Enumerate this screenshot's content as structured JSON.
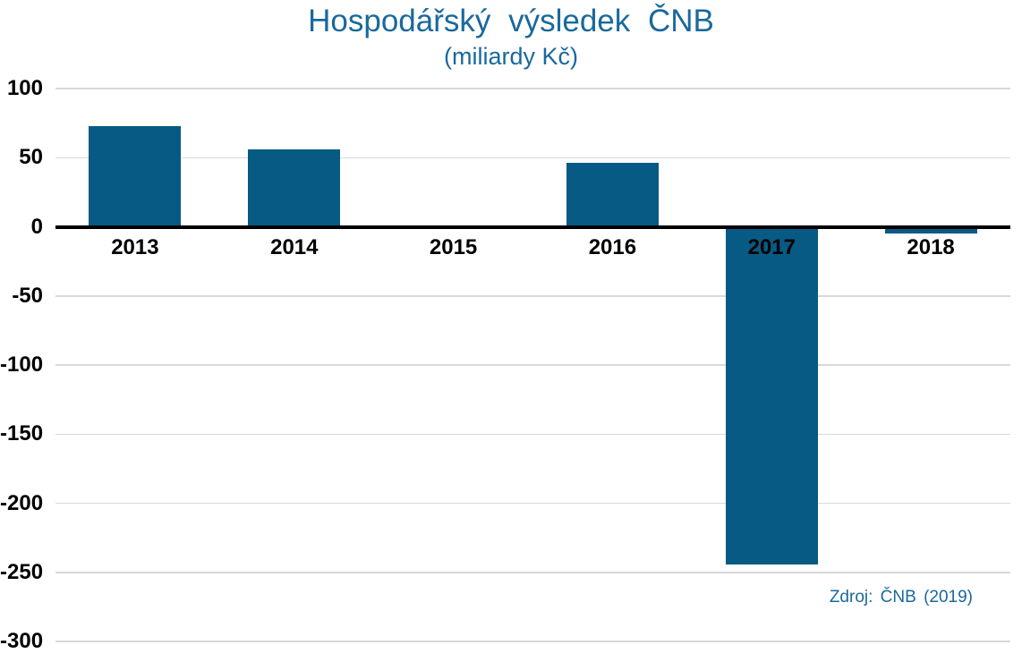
{
  "colors": {
    "bar": "#075A84",
    "heading": "#19699C",
    "source_text": "#19699C",
    "gridline": "#D9D9D9",
    "zero_line": "#000000",
    "axis_label": "#000000",
    "background": "#FFFFFF"
  },
  "chart_data": {
    "type": "bar",
    "title": "Hospodářský výsledek ČNB",
    "subtitle": "(miliardy Kč)",
    "categories": [
      "2013",
      "2014",
      "2015",
      "2016",
      "2017",
      "2018"
    ],
    "values": [
      73,
      56,
      0,
      46,
      -244,
      -5
    ],
    "xlabel": "",
    "ylabel": "",
    "ylim": [
      -300,
      100
    ],
    "yticks": [
      100,
      50,
      0,
      -50,
      -100,
      -150,
      -200,
      -250,
      -300
    ],
    "grid": true,
    "legend": false,
    "source_note": "Zdroj: ČNB (2019)"
  }
}
